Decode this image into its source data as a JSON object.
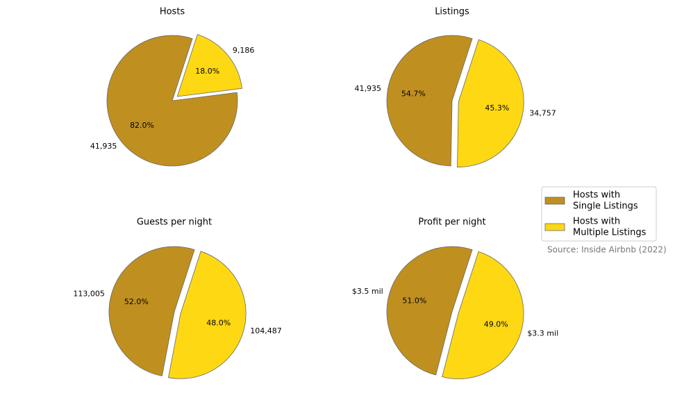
{
  "chart_data": [
    {
      "type": "pie",
      "title": "Hosts",
      "values": [
        82.0,
        18.0
      ],
      "value_labels": [
        "82.0%",
        "18.0%"
      ],
      "counts": [
        41935,
        9186
      ],
      "count_labels": [
        "41,935",
        "9,186"
      ],
      "colors": [
        "#bf9020",
        "#ffd814"
      ],
      "startangle": 72,
      "explode": [
        0,
        0.1
      ]
    },
    {
      "type": "pie",
      "title": "Listings",
      "values": [
        54.7,
        45.3
      ],
      "value_labels": [
        "54.7%",
        "45.3%"
      ],
      "counts": [
        41935,
        34757
      ],
      "count_labels": [
        "41,935",
        "34,757"
      ],
      "colors": [
        "#bf9020",
        "#ffd814"
      ],
      "startangle": 72,
      "explode": [
        0,
        0.1
      ]
    },
    {
      "type": "pie",
      "title": "Guests per night",
      "values": [
        52.0,
        48.0
      ],
      "value_labels": [
        "52.0%",
        "48.0%"
      ],
      "counts": [
        113005,
        104487
      ],
      "count_labels": [
        "113,005",
        "104,487"
      ],
      "colors": [
        "#bf9020",
        "#ffd814"
      ],
      "startangle": 72,
      "explode": [
        0,
        0.1
      ]
    },
    {
      "type": "pie",
      "title": "Profit per night",
      "values": [
        51.0,
        49.0
      ],
      "value_labels": [
        "51.0%",
        "49.0%"
      ],
      "counts": [
        3500000,
        3300000
      ],
      "count_labels": [
        "$3.5 mil",
        "$3.3 mil"
      ],
      "colors": [
        "#bf9020",
        "#ffd814"
      ],
      "startangle": 72,
      "explode": [
        0,
        0.1
      ]
    }
  ],
  "legend": {
    "labels": [
      [
        "Hosts with",
        "Single Listings"
      ],
      [
        "Hosts with",
        "Multiple Listings"
      ]
    ],
    "loc": "right"
  },
  "source": "Source: Inside Airbnb (2022)"
}
